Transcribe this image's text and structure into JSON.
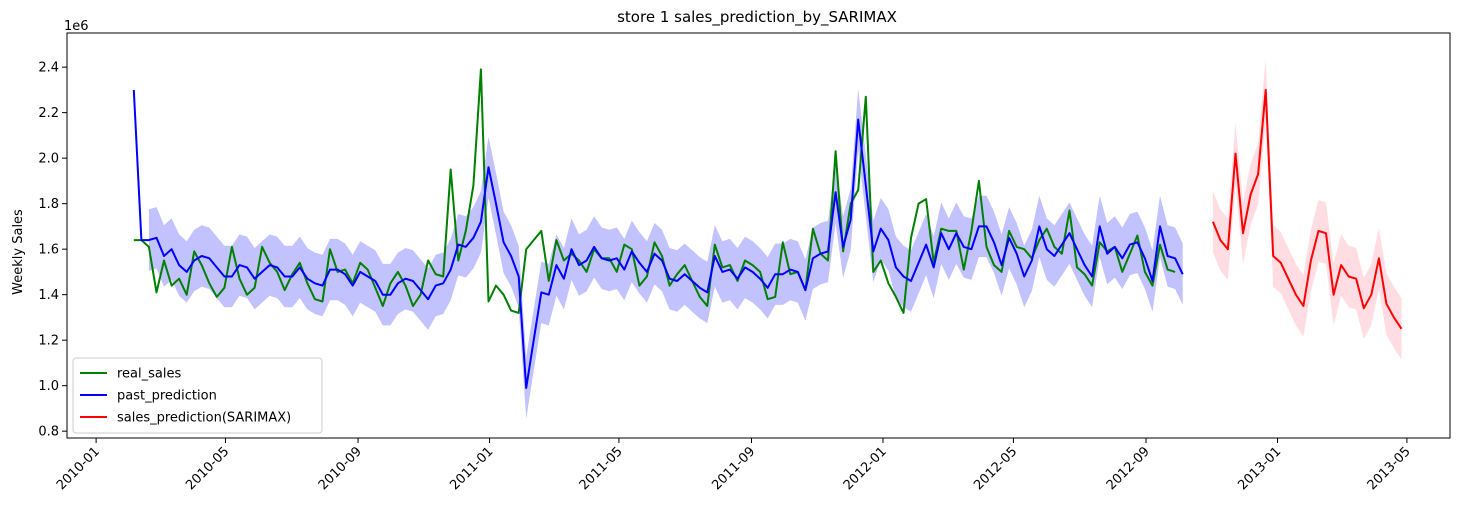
{
  "chart_data": {
    "type": "line",
    "title": "store 1 sales_prediction_by_SARIMAX",
    "xlabel": "",
    "ylabel": "Weekly Sales",
    "y_offset_text": "1e6",
    "xlim": [
      "2009-12-05",
      "2013-06-10"
    ],
    "ylim": [
      0.77,
      2.55
    ],
    "y_ticks": [
      0.8,
      1.0,
      1.2,
      1.4,
      1.6,
      1.8,
      2.0,
      2.2,
      2.4
    ],
    "y_tick_labels": [
      "0.8",
      "1.0",
      "1.2",
      "1.4",
      "1.6",
      "1.8",
      "2.0",
      "2.2",
      "2.4"
    ],
    "x_ticks": [
      "2010-01-01",
      "2010-05-01",
      "2010-09-01",
      "2011-01-01",
      "2011-05-01",
      "2011-09-01",
      "2012-01-01",
      "2012-05-01",
      "2012-09-01",
      "2013-01-01",
      "2013-05-01"
    ],
    "x_tick_labels": [
      "2010-01",
      "2010-05",
      "2010-09",
      "2011-01",
      "2011-05",
      "2011-09",
      "2012-01",
      "2012-05",
      "2012-09",
      "2013-01",
      "2013-05"
    ],
    "grid": false,
    "legend_position": "lower-left",
    "colors": {
      "real_sales": "#008000",
      "past_prediction": "#0000ff",
      "sales_prediction": "#ff0000",
      "past_band": "#b3b3ff",
      "future_band": "#ffd9e0"
    },
    "series": [
      {
        "name": "real_sales",
        "x_start": "2010-02-05",
        "step_days": 7,
        "values": [
          1.64,
          1.64,
          1.61,
          1.41,
          1.55,
          1.44,
          1.47,
          1.4,
          1.59,
          1.53,
          1.45,
          1.39,
          1.43,
          1.61,
          1.47,
          1.4,
          1.43,
          1.61,
          1.54,
          1.5,
          1.42,
          1.49,
          1.54,
          1.45,
          1.38,
          1.37,
          1.6,
          1.5,
          1.51,
          1.45,
          1.54,
          1.51,
          1.43,
          1.35,
          1.45,
          1.5,
          1.44,
          1.35,
          1.4,
          1.55,
          1.49,
          1.48,
          1.95,
          1.55,
          1.68,
          1.88,
          2.39,
          1.37,
          1.44,
          1.4,
          1.33,
          1.32,
          1.6,
          1.64,
          1.68,
          1.46,
          1.64,
          1.55,
          1.58,
          1.55,
          1.5,
          1.6,
          1.56,
          1.56,
          1.5,
          1.62,
          1.6,
          1.44,
          1.48,
          1.63,
          1.57,
          1.44,
          1.49,
          1.53,
          1.46,
          1.39,
          1.35,
          1.62,
          1.52,
          1.53,
          1.46,
          1.55,
          1.53,
          1.5,
          1.38,
          1.39,
          1.63,
          1.49,
          1.5,
          1.42,
          1.69,
          1.58,
          1.55,
          2.03,
          1.59,
          1.8,
          1.86,
          2.27,
          1.5,
          1.55,
          1.45,
          1.39,
          1.32,
          1.65,
          1.8,
          1.82,
          1.54,
          1.69,
          1.68,
          1.68,
          1.51,
          1.68,
          1.9,
          1.61,
          1.53,
          1.5,
          1.68,
          1.61,
          1.6,
          1.56,
          1.64,
          1.69,
          1.61,
          1.58,
          1.77,
          1.52,
          1.49,
          1.44,
          1.63,
          1.59,
          1.61,
          1.5,
          1.58,
          1.66,
          1.5,
          1.44,
          1.62,
          1.51,
          1.5
        ]
      },
      {
        "name": "past_prediction",
        "x_start": "2010-02-05",
        "step_days": 7,
        "values": [
          2.3,
          1.64,
          1.64,
          1.65,
          1.57,
          1.6,
          1.53,
          1.5,
          1.55,
          1.57,
          1.56,
          1.52,
          1.48,
          1.48,
          1.53,
          1.52,
          1.47,
          1.5,
          1.53,
          1.52,
          1.48,
          1.48,
          1.52,
          1.47,
          1.45,
          1.44,
          1.51,
          1.51,
          1.49,
          1.44,
          1.5,
          1.48,
          1.46,
          1.4,
          1.4,
          1.45,
          1.47,
          1.46,
          1.42,
          1.38,
          1.44,
          1.45,
          1.51,
          1.62,
          1.61,
          1.65,
          1.72,
          1.96,
          1.8,
          1.63,
          1.57,
          1.48,
          0.99,
          1.2,
          1.41,
          1.4,
          1.53,
          1.47,
          1.6,
          1.53,
          1.55,
          1.61,
          1.56,
          1.55,
          1.56,
          1.51,
          1.59,
          1.54,
          1.5,
          1.58,
          1.55,
          1.47,
          1.46,
          1.49,
          1.46,
          1.43,
          1.41,
          1.57,
          1.5,
          1.51,
          1.47,
          1.52,
          1.5,
          1.47,
          1.43,
          1.49,
          1.49,
          1.51,
          1.5,
          1.42,
          1.56,
          1.58,
          1.59,
          1.85,
          1.61,
          1.73,
          2.17,
          1.88,
          1.59,
          1.69,
          1.64,
          1.52,
          1.48,
          1.46,
          1.54,
          1.62,
          1.52,
          1.67,
          1.6,
          1.67,
          1.61,
          1.6,
          1.7,
          1.7,
          1.63,
          1.53,
          1.65,
          1.58,
          1.48,
          1.55,
          1.7,
          1.6,
          1.57,
          1.62,
          1.67,
          1.6,
          1.53,
          1.48,
          1.7,
          1.58,
          1.61,
          1.56,
          1.62,
          1.63,
          1.56,
          1.46,
          1.7,
          1.57,
          1.56,
          1.49
        ]
      },
      {
        "name": "sales_prediction(SARIMAX)",
        "x_start": "2012-11-02",
        "step_days": 7,
        "values": [
          1.72,
          1.64,
          1.6,
          2.02,
          1.67,
          1.84,
          1.93,
          2.3,
          1.57,
          1.54,
          1.47,
          1.4,
          1.35,
          1.55,
          1.68,
          1.67,
          1.4,
          1.53,
          1.48,
          1.47,
          1.34,
          1.4,
          1.56,
          1.36,
          1.3,
          1.25
        ]
      }
    ],
    "confidence_band_half_width": 0.135,
    "legend": [
      "real_sales",
      "past_prediction",
      "sales_prediction(SARIMAX)"
    ]
  }
}
